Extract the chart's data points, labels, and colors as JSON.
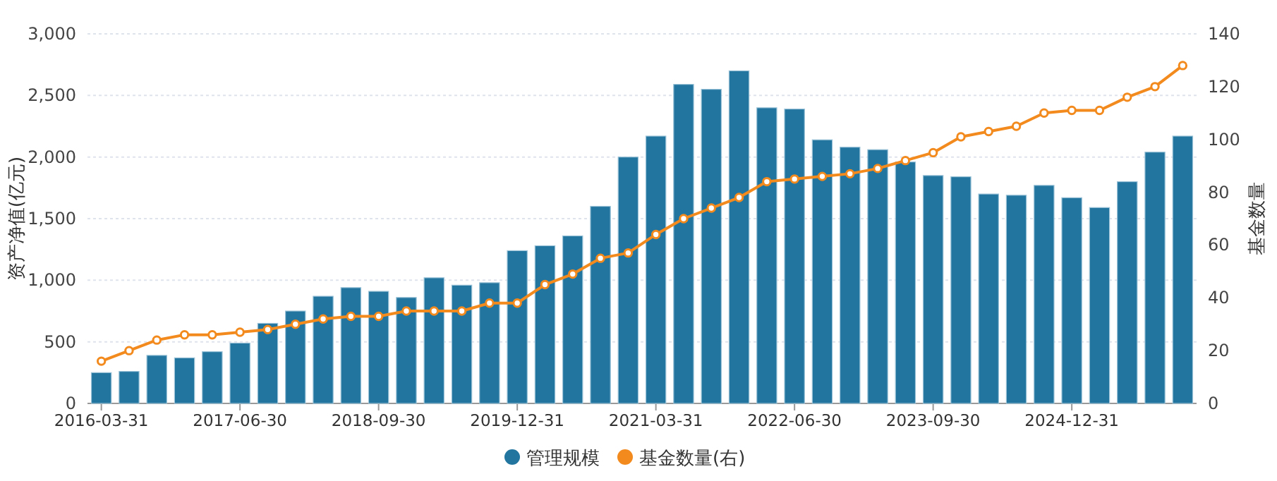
{
  "chart_data": {
    "type": "bar",
    "categories": [
      "2016-03-31",
      null,
      null,
      null,
      null,
      "2017-06-30",
      null,
      null,
      null,
      null,
      "2018-09-30",
      null,
      null,
      null,
      null,
      "2019-12-31",
      null,
      null,
      null,
      null,
      "2021-03-31",
      null,
      null,
      null,
      null,
      "2022-06-30",
      null,
      null,
      null,
      null,
      "2023-09-30",
      null,
      null,
      null,
      null,
      "2024-12-31",
      null,
      null,
      null,
      null
    ],
    "series": [
      {
        "name": "管理规模",
        "color": "#21759f",
        "values": [
          250,
          260,
          390,
          370,
          420,
          490,
          650,
          750,
          870,
          940,
          910,
          860,
          1020,
          960,
          980,
          1240,
          1280,
          1360,
          1600,
          2000,
          2170,
          2590,
          2550,
          2700,
          2400,
          2390,
          2140,
          2080,
          2060,
          1960,
          1850,
          1840,
          1700,
          1690,
          1770,
          1670,
          1590,
          1800,
          2040,
          2170
        ]
      },
      {
        "name": "基金数量(右)",
        "type": "line",
        "axis": "y2",
        "color": "#f28a1e",
        "marker": "circle",
        "values": [
          16,
          20,
          24,
          26,
          26,
          27,
          28,
          30,
          32,
          33,
          33,
          35,
          35,
          35,
          38,
          38,
          45,
          49,
          55,
          57,
          64,
          70,
          74,
          78,
          84,
          85,
          86,
          87,
          89,
          92,
          95,
          101,
          103,
          105,
          110,
          111,
          111,
          116,
          120,
          128
        ]
      }
    ],
    "ylabel": "资产净值(亿元)",
    "y2label": "基金数量",
    "ylim": [
      0,
      3000
    ],
    "yticks": [
      0,
      {
        "value": 500,
        "label": "500"
      },
      {
        "value": 1000,
        "label": "1,000"
      },
      {
        "value": 1500,
        "label": "1,500"
      },
      {
        "value": 2000,
        "label": "2,000"
      },
      {
        "value": 2500,
        "label": "2,500"
      },
      {
        "value": 3000,
        "label": "3,000"
      }
    ],
    "y2lim": [
      0,
      140
    ],
    "y2ticks": [
      0,
      20,
      40,
      60,
      80,
      100,
      120,
      140
    ],
    "grid": "y",
    "legend": "bottom"
  }
}
